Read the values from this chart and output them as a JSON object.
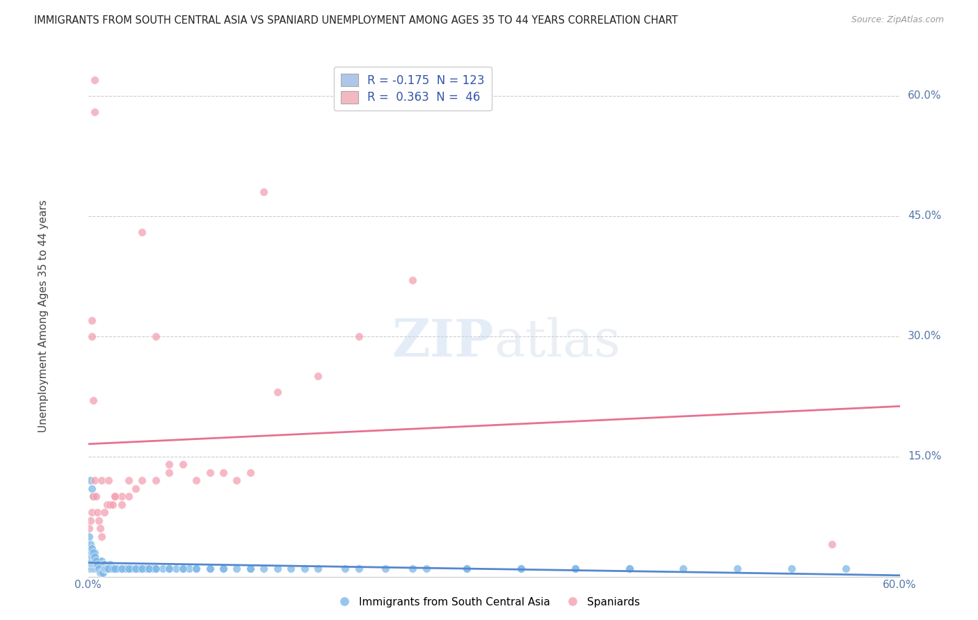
{
  "title": "IMMIGRANTS FROM SOUTH CENTRAL ASIA VS SPANIARD UNEMPLOYMENT AMONG AGES 35 TO 44 YEARS CORRELATION CHART",
  "source": "Source: ZipAtlas.com",
  "ylabel": "Unemployment Among Ages 35 to 44 years",
  "xlim": [
    0.0,
    0.6
  ],
  "ylim": [
    0.0,
    0.65
  ],
  "yticks": [
    0.0,
    0.15,
    0.3,
    0.45,
    0.6
  ],
  "ytick_labels": [
    "",
    "15.0%",
    "30.0%",
    "45.0%",
    "60.0%"
  ],
  "xticks": [
    0.0,
    0.15,
    0.3,
    0.45,
    0.6
  ],
  "xtick_labels": [
    "0.0%",
    "",
    "",
    "",
    "60.0%"
  ],
  "legend1_label": "R = -0.175  N = 123",
  "legend2_label": "R =  0.363  N =  46",
  "legend1_color": "#aec6e8",
  "legend2_color": "#f4b8c1",
  "scatter1_color": "#7db8e8",
  "scatter2_color": "#f4a0b0",
  "line1_color": "#5588cc",
  "line2_color": "#e87090",
  "watermark_zip": "ZIP",
  "watermark_atlas": "atlas",
  "background": "#ffffff",
  "grid_color": "#cccccc",
  "axis_label_color": "#5577aa",
  "legend_text_color": "#3355aa",
  "blue_x": [
    0.001,
    0.001,
    0.002,
    0.002,
    0.002,
    0.003,
    0.003,
    0.003,
    0.003,
    0.004,
    0.004,
    0.004,
    0.004,
    0.005,
    0.005,
    0.005,
    0.005,
    0.005,
    0.006,
    0.006,
    0.006,
    0.007,
    0.007,
    0.007,
    0.008,
    0.008,
    0.008,
    0.009,
    0.009,
    0.01,
    0.01,
    0.01,
    0.011,
    0.011,
    0.012,
    0.012,
    0.013,
    0.014,
    0.015,
    0.016,
    0.016,
    0.017,
    0.018,
    0.019,
    0.02,
    0.021,
    0.022,
    0.025,
    0.027,
    0.028,
    0.03,
    0.032,
    0.035,
    0.038,
    0.04,
    0.043,
    0.045,
    0.048,
    0.05,
    0.055,
    0.06,
    0.065,
    0.07,
    0.075,
    0.08,
    0.09,
    0.1,
    0.11,
    0.12,
    0.13,
    0.15,
    0.17,
    0.19,
    0.22,
    0.25,
    0.28,
    0.32,
    0.36,
    0.4,
    0.44,
    0.48,
    0.52,
    0.56,
    0.002,
    0.003,
    0.004,
    0.001,
    0.002,
    0.003,
    0.004,
    0.005,
    0.006,
    0.007,
    0.008,
    0.009,
    0.01,
    0.011,
    0.012,
    0.013,
    0.014,
    0.015,
    0.018,
    0.02,
    0.025,
    0.03,
    0.035,
    0.04,
    0.045,
    0.05,
    0.06,
    0.07,
    0.08,
    0.09,
    0.1,
    0.12,
    0.14,
    0.16,
    0.2,
    0.24,
    0.28,
    0.32,
    0.36,
    0.4
  ],
  "blue_y": [
    0.01,
    0.02,
    0.01,
    0.02,
    0.03,
    0.01,
    0.015,
    0.02,
    0.025,
    0.01,
    0.015,
    0.02,
    0.025,
    0.01,
    0.015,
    0.02,
    0.025,
    0.03,
    0.01,
    0.015,
    0.02,
    0.01,
    0.015,
    0.02,
    0.01,
    0.015,
    0.02,
    0.01,
    0.015,
    0.01,
    0.015,
    0.02,
    0.01,
    0.015,
    0.01,
    0.015,
    0.01,
    0.01,
    0.01,
    0.01,
    0.015,
    0.01,
    0.01,
    0.01,
    0.01,
    0.01,
    0.01,
    0.01,
    0.01,
    0.01,
    0.01,
    0.01,
    0.01,
    0.01,
    0.01,
    0.01,
    0.01,
    0.01,
    0.01,
    0.01,
    0.01,
    0.01,
    0.01,
    0.01,
    0.01,
    0.01,
    0.01,
    0.01,
    0.01,
    0.01,
    0.01,
    0.01,
    0.01,
    0.01,
    0.01,
    0.01,
    0.01,
    0.01,
    0.01,
    0.01,
    0.01,
    0.01,
    0.01,
    0.12,
    0.11,
    0.1,
    0.05,
    0.04,
    0.035,
    0.03,
    0.025,
    0.02,
    0.015,
    0.01,
    0.005,
    0.005,
    0.005,
    0.01,
    0.01,
    0.01,
    0.01,
    0.01,
    0.01,
    0.01,
    0.01,
    0.01,
    0.01,
    0.01,
    0.01,
    0.01,
    0.01,
    0.01,
    0.01,
    0.01,
    0.01,
    0.01,
    0.01,
    0.01,
    0.01,
    0.01,
    0.01,
    0.01,
    0.01
  ],
  "pink_x": [
    0.001,
    0.002,
    0.003,
    0.004,
    0.005,
    0.006,
    0.007,
    0.008,
    0.009,
    0.01,
    0.012,
    0.014,
    0.016,
    0.018,
    0.02,
    0.025,
    0.03,
    0.035,
    0.04,
    0.05,
    0.06,
    0.07,
    0.09,
    0.11,
    0.14,
    0.17,
    0.2,
    0.24,
    0.005,
    0.005,
    0.003,
    0.003,
    0.004,
    0.01,
    0.015,
    0.02,
    0.025,
    0.03,
    0.04,
    0.05,
    0.06,
    0.08,
    0.1,
    0.12,
    0.55,
    0.13
  ],
  "pink_y": [
    0.06,
    0.07,
    0.08,
    0.1,
    0.12,
    0.1,
    0.08,
    0.07,
    0.06,
    0.05,
    0.08,
    0.09,
    0.09,
    0.09,
    0.1,
    0.1,
    0.1,
    0.11,
    0.43,
    0.3,
    0.14,
    0.14,
    0.13,
    0.12,
    0.23,
    0.25,
    0.3,
    0.37,
    0.62,
    0.58,
    0.32,
    0.3,
    0.22,
    0.12,
    0.12,
    0.1,
    0.09,
    0.12,
    0.12,
    0.12,
    0.13,
    0.12,
    0.13,
    0.13,
    0.04,
    0.48
  ]
}
